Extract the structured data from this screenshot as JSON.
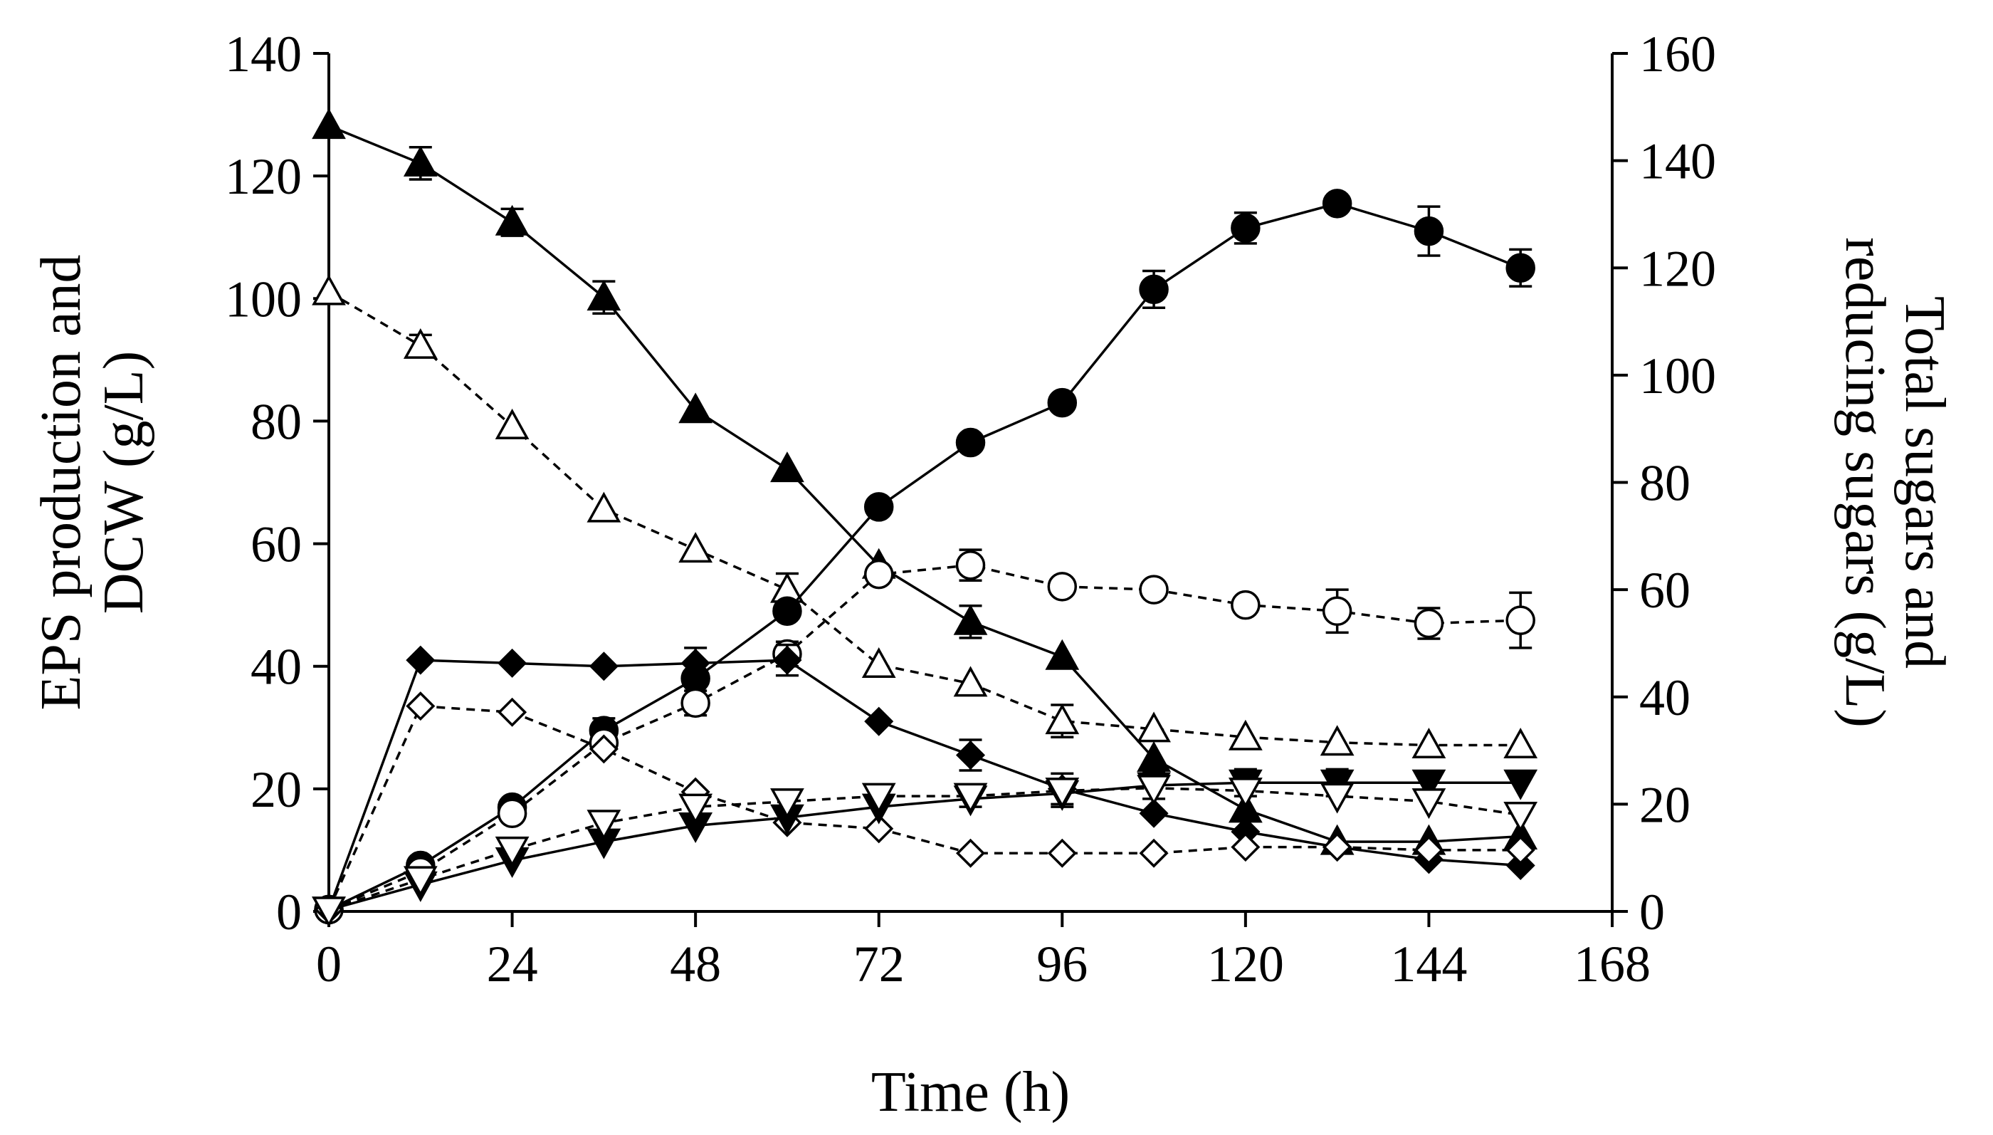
{
  "chart_data": {
    "type": "line",
    "title": "",
    "xlabel": "Time (h)",
    "ylabel_left": [
      "EPS production and",
      "DCW (g/L)"
    ],
    "ylabel_right": [
      "Total sugars and",
      "reducing sugars (g/L)"
    ],
    "xlim": [
      0,
      168
    ],
    "ylim_left": [
      0,
      140
    ],
    "ylim_right": [
      0,
      160
    ],
    "x_ticks": [
      "0",
      "24",
      "48",
      "72",
      "96",
      "120",
      "144",
      "168"
    ],
    "y_left_ticks": [
      "0",
      "20",
      "40",
      "60",
      "80",
      "100",
      "120",
      "140"
    ],
    "y_right_ticks": [
      "0",
      "20",
      "40",
      "60",
      "80",
      "100",
      "120",
      "140",
      "160"
    ],
    "grid": false,
    "series": [
      {
        "name": "Total sugars (filled triangle)",
        "axis": "right",
        "marker": "triangle-up",
        "filled": true,
        "line": "solid",
        "x": [
          0,
          12,
          24,
          36,
          48,
          60,
          72,
          84,
          96,
          108,
          120,
          132,
          144,
          156
        ],
        "y": [
          146.5,
          139.5,
          128.5,
          114.5,
          93.5,
          82.5,
          64.5,
          54,
          47.5,
          28.5,
          19,
          13,
          13,
          14
        ],
        "err": [
          0,
          3,
          2.5,
          3,
          0,
          0,
          0,
          3,
          0,
          0,
          0,
          0,
          0,
          0
        ]
      },
      {
        "name": "Reducing sugars (open triangle)",
        "axis": "right",
        "marker": "triangle-up",
        "filled": false,
        "line": "dashed",
        "x": [
          0,
          12,
          24,
          36,
          48,
          60,
          72,
          84,
          96,
          108,
          120,
          132,
          144,
          156
        ],
        "y": [
          115.5,
          105.5,
          90.5,
          75,
          67.5,
          60,
          46,
          42.5,
          35.5,
          34,
          32.5,
          31.5,
          31,
          31
        ],
        "err": [
          0,
          2,
          0,
          0,
          0,
          3,
          0,
          0,
          3,
          0,
          0,
          0,
          0,
          0
        ]
      },
      {
        "name": "EPS production (filled circle)",
        "axis": "left",
        "marker": "circle",
        "filled": true,
        "line": "solid",
        "x": [
          0,
          12,
          24,
          36,
          48,
          60,
          72,
          84,
          96,
          108,
          120,
          132,
          144,
          156
        ],
        "y": [
          0.3,
          7.5,
          17,
          29.5,
          38,
          49,
          66,
          76.5,
          83,
          101.5,
          111.5,
          115.5,
          111,
          105
        ],
        "err": [
          0,
          0,
          0,
          2,
          0,
          0,
          0,
          0,
          0,
          3,
          2.5,
          0,
          4,
          3
        ]
      },
      {
        "name": "EPS production (open circle)",
        "axis": "left",
        "marker": "circle",
        "filled": false,
        "line": "dashed",
        "x": [
          0,
          12,
          24,
          36,
          48,
          60,
          72,
          84,
          96,
          108,
          120,
          132,
          144,
          156
        ],
        "y": [
          0.3,
          6.5,
          16,
          27.5,
          34,
          42,
          55,
          56.5,
          53,
          52.5,
          50,
          49,
          47,
          47.5
        ],
        "err": [
          0,
          0,
          0,
          0,
          2,
          2,
          0,
          2.5,
          0,
          0,
          0,
          3.5,
          2.5,
          4.5
        ]
      },
      {
        "name": "DCW (filled diamond)",
        "axis": "left",
        "marker": "diamond",
        "filled": true,
        "line": "solid",
        "x": [
          0,
          12,
          24,
          36,
          48,
          60,
          72,
          84,
          96,
          108,
          120,
          132,
          144,
          156
        ],
        "y": [
          0.3,
          41,
          40.5,
          40,
          40.5,
          41,
          31,
          25.5,
          20,
          16,
          13,
          10.5,
          8.5,
          7.5
        ],
        "err": [
          0,
          0,
          0,
          0,
          2.5,
          2.5,
          0,
          2.5,
          2.5,
          0,
          0,
          0,
          0,
          0
        ]
      },
      {
        "name": "DCW (open diamond)",
        "axis": "left",
        "marker": "diamond",
        "filled": false,
        "line": "dashed",
        "x": [
          0,
          12,
          24,
          36,
          48,
          60,
          72,
          84,
          96,
          108,
          120,
          132,
          144,
          156
        ],
        "y": [
          0.3,
          33.5,
          32.5,
          26.5,
          19.5,
          14.5,
          13.5,
          9.5,
          9.5,
          9.5,
          10.5,
          10.5,
          10,
          10
        ],
        "err": [
          0,
          0,
          0,
          0,
          0,
          0,
          0,
          0,
          0,
          0,
          0,
          0,
          0,
          0
        ]
      },
      {
        "name": "Reducing sugars (filled inverted triangle)",
        "axis": "right",
        "marker": "triangle-down",
        "filled": true,
        "line": "solid",
        "x": [
          0,
          12,
          24,
          36,
          48,
          60,
          72,
          84,
          96,
          108,
          120,
          132,
          144,
          156
        ],
        "y": [
          0.3,
          5,
          9.5,
          13,
          16,
          17.5,
          19.5,
          21,
          22,
          23.5,
          24,
          24,
          24,
          24
        ],
        "err": [
          0,
          0,
          0,
          0,
          0,
          0,
          0,
          0,
          2.5,
          2.5,
          2.5,
          2.5,
          0,
          0
        ]
      },
      {
        "name": "Reducing sugars (open inverted triangle)",
        "axis": "right",
        "marker": "triangle-down",
        "filled": false,
        "line": "dashed",
        "x": [
          0,
          12,
          24,
          36,
          48,
          60,
          72,
          84,
          96,
          108,
          120,
          132,
          144,
          156
        ],
        "y": [
          0.3,
          6,
          11.5,
          16.5,
          19.5,
          20.5,
          21.5,
          21.5,
          22.5,
          23,
          22.5,
          21.5,
          20.5,
          18
        ],
        "err": [
          0,
          0,
          0,
          0,
          0,
          0,
          0,
          2,
          0,
          0,
          0,
          0,
          0,
          0
        ]
      }
    ]
  }
}
